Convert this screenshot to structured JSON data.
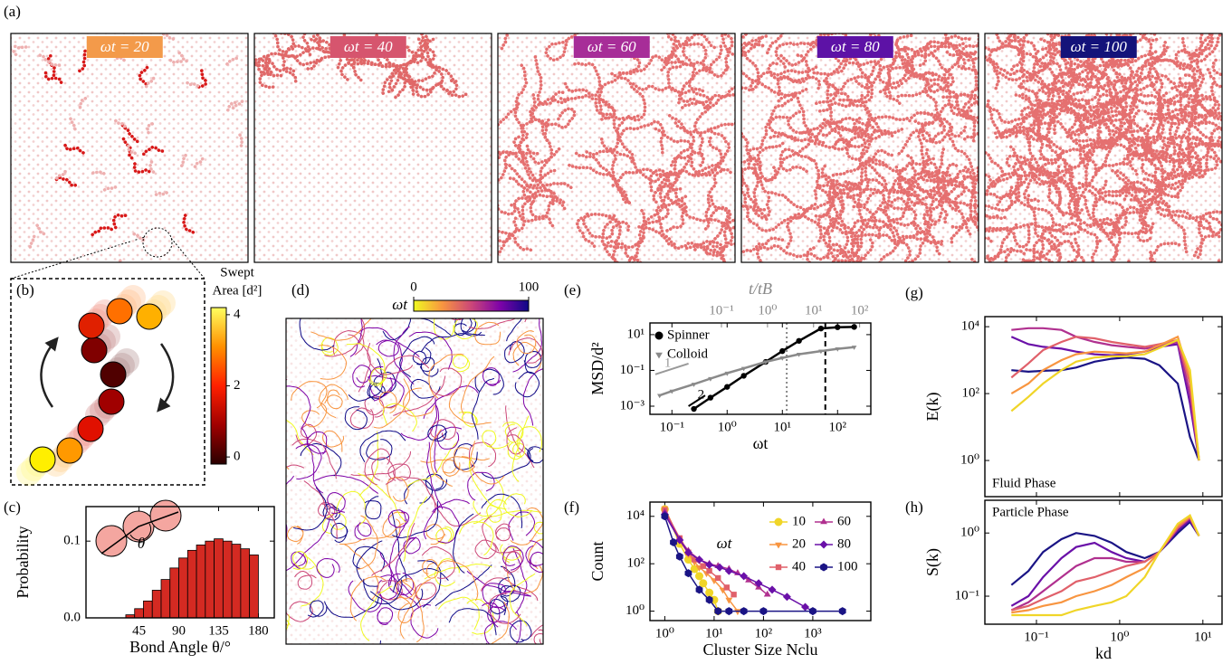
{
  "panels": {
    "a": {
      "label": "(a)",
      "snapshots": [
        {
          "label": "ωt = 20",
          "color": "#f39a4a"
        },
        {
          "label": "ωt = 40",
          "color": "#d6556e"
        },
        {
          "label": "ωt = 60",
          "color": "#a72d98"
        },
        {
          "label": "ωt = 80",
          "color": "#5d12a6"
        },
        {
          "label": "ωt = 100",
          "color": "#14137a"
        }
      ]
    },
    "b": {
      "label": "(b)"
    },
    "d": {
      "label": "(d)"
    }
  },
  "chart_data": [
    {
      "type": "colorbar",
      "title": [
        "Swept",
        "Area [d²]"
      ],
      "colors": [
        "#2a0000",
        "#a00000",
        "#ff2000",
        "#ff9000",
        "#ffff60"
      ],
      "ylim": [
        -0.2,
        4.2
      ],
      "yticks": [
        0,
        2,
        4
      ]
    },
    {
      "type": "colorbar",
      "title": "ωt",
      "colors": [
        "#f0f921",
        "#f89540",
        "#cc4778",
        "#7e03a8",
        "#0d0887"
      ],
      "xlim": [
        0,
        100
      ],
      "xticks": [
        0,
        100
      ]
    },
    {
      "type": "histogram",
      "label": "(c)",
      "xlabel": "Bond Angle θ/°",
      "ylabel": "Probability",
      "inset_label": "θ",
      "bins": [
        30,
        40,
        50,
        60,
        70,
        80,
        90,
        100,
        110,
        120,
        130,
        140,
        150,
        160,
        170,
        180
      ],
      "values": [
        0.004,
        0.012,
        0.022,
        0.036,
        0.05,
        0.065,
        0.078,
        0.088,
        0.095,
        0.1,
        0.103,
        0.1,
        0.096,
        0.09,
        0.082
      ],
      "color": "#d42a22",
      "xlim": [
        -15,
        198
      ],
      "xticks": [
        45,
        90,
        135,
        180
      ],
      "ylim": [
        0,
        0.145
      ],
      "yticks": [
        {
          "value": 0,
          "label": "0.0"
        },
        0.1
      ]
    },
    {
      "type": "line",
      "label": "(e)",
      "xlabel": "ωt",
      "ylabel": "MSD/d²",
      "x2label": "t/tB",
      "x2color": "#888888",
      "xscale": "log",
      "yscale": "log",
      "xlim": [
        0.04,
        400
      ],
      "ylim": [
        0.00035,
        45
      ],
      "x2lim": [
        0.0028,
        175
      ],
      "xticks": [
        {
          "value": 0.1,
          "label": "10⁻¹"
        },
        {
          "value": 1,
          "label": "10⁰"
        },
        {
          "value": 10,
          "label": "10¹"
        },
        {
          "value": 100,
          "label": "10²"
        }
      ],
      "yticks": [
        {
          "value": 0.001,
          "label": "10⁻³"
        },
        {
          "value": 0.1,
          "label": "10⁻¹"
        },
        {
          "value": 10,
          "label": "10¹"
        }
      ],
      "x2ticks": [
        {
          "value": 0.1,
          "label": "10⁻¹"
        },
        {
          "value": 1,
          "label": "10⁰"
        },
        {
          "value": 10,
          "label": "10¹"
        },
        {
          "value": 100,
          "label": "10²"
        }
      ],
      "x": [
        0.06,
        0.1,
        0.25,
        0.5,
        1,
        2,
        5,
        10,
        20,
        50,
        100,
        200
      ],
      "series": [
        {
          "name": "Spinner",
          "color": "#000000",
          "marker": "circle",
          "values": [
            null,
            null,
            0.0007,
            0.003,
            0.012,
            0.05,
            0.3,
            1.2,
            4.5,
            22,
            26,
            27
          ]
        },
        {
          "name": "Colloid",
          "color": "#8a8a8a",
          "marker": "triangle-down",
          "values": [
            0.004,
            0.007,
            0.017,
            0.035,
            0.07,
            0.13,
            0.3,
            0.5,
            0.8,
            1.2,
            1.6,
            2.0
          ]
        }
      ],
      "vlines": [
        {
          "x": 12,
          "style": "dotted",
          "color": "#888888"
        },
        {
          "x": 60,
          "style": "dashed",
          "color": "#000000"
        }
      ],
      "slope_guides": [
        {
          "label": "1",
          "x": [
            0.05,
            0.2
          ],
          "y": [
            0.06,
            0.24
          ],
          "color": "#999999"
        },
        {
          "label": "2",
          "x": [
            0.2,
            0.4
          ],
          "y": [
            0.001,
            0.004
          ],
          "color": "#000000"
        }
      ],
      "legend": "upper left"
    },
    {
      "type": "line",
      "label": "(f)",
      "xlabel": "Cluster Size Nclu",
      "ylabel": "Count",
      "xscale": "log",
      "yscale": "log",
      "xlim": [
        0.5,
        15000
      ],
      "ylim": [
        0.4,
        40000
      ],
      "xticks": [
        {
          "value": 1,
          "label": "10⁰"
        },
        {
          "value": 10,
          "label": "10¹"
        },
        {
          "value": 100,
          "label": "10²"
        },
        {
          "value": 1000,
          "label": "10³"
        }
      ],
      "yticks": [
        {
          "value": 1,
          "label": "10⁰"
        },
        {
          "value": 100,
          "label": "10²"
        },
        {
          "value": 10000,
          "label": "10⁴"
        }
      ],
      "legend_title": "ωt",
      "legend": "upper right",
      "series": [
        {
          "name": "10",
          "color": "#f0d528",
          "marker": "circle",
          "x": [
            1,
            2,
            3,
            4,
            5,
            6,
            8,
            10,
            12
          ],
          "values": [
            20000,
            700,
            150,
            60,
            30,
            15,
            6,
            3,
            1
          ]
        },
        {
          "name": "20",
          "color": "#f89540",
          "marker": "triangle-down",
          "x": [
            1,
            2,
            3,
            4,
            5,
            7,
            10,
            15,
            20,
            30
          ],
          "values": [
            22000,
            1000,
            250,
            120,
            70,
            40,
            20,
            8,
            3,
            1
          ]
        },
        {
          "name": "40",
          "color": "#e0606a",
          "marker": "square",
          "x": [
            1,
            2,
            3,
            4,
            6,
            8,
            12,
            18,
            25
          ],
          "values": [
            18000,
            1200,
            300,
            150,
            80,
            50,
            25,
            10,
            5
          ]
        },
        {
          "name": "60",
          "color": "#b0308f",
          "marker": "triangle-up",
          "x": [
            1,
            2,
            3,
            5,
            8,
            12,
            20,
            30,
            50,
            80,
            120
          ],
          "values": [
            15000,
            1100,
            350,
            150,
            100,
            80,
            60,
            40,
            20,
            10,
            5
          ]
        },
        {
          "name": "80",
          "color": "#6a10a8",
          "marker": "diamond",
          "x": [
            1,
            2,
            3,
            5,
            8,
            13,
            20,
            40,
            80,
            150,
            300,
            700,
            1000
          ],
          "values": [
            12000,
            1000,
            300,
            150,
            90,
            70,
            50,
            30,
            15,
            8,
            4,
            1.5,
            1
          ]
        },
        {
          "name": "100",
          "color": "#1a1485",
          "marker": "hexagon",
          "x": [
            1,
            1.5,
            2,
            3,
            5,
            8,
            12,
            20,
            40,
            100,
            1000,
            4000
          ],
          "values": [
            10000,
            800,
            200,
            40,
            8,
            3,
            1,
            1,
            1,
            1,
            1,
            1
          ]
        }
      ]
    },
    {
      "type": "line",
      "label": "(g)",
      "ylabel": "E(k)",
      "annotation": "Fluid Phase",
      "xscale": "log",
      "yscale": "log",
      "xlim": [
        0.024,
        17
      ],
      "ylim": [
        0.083,
        20000
      ],
      "xticks": [
        {
          "value": 0.1,
          "label": "10⁻¹"
        },
        {
          "value": 1,
          "label": "10⁰"
        },
        {
          "value": 10,
          "label": "10¹"
        }
      ],
      "yticks": [
        {
          "value": 1,
          "label": "10⁰"
        },
        {
          "value": 100,
          "label": "10²"
        },
        {
          "value": 10000,
          "label": "10⁴"
        }
      ],
      "x": [
        0.05,
        0.08,
        0.12,
        0.2,
        0.3,
        0.5,
        0.8,
        1.2,
        2,
        3,
        5,
        7,
        9
      ],
      "series": [
        {
          "color": "#1a1485",
          "values": [
            500,
            450,
            480,
            500,
            600,
            900,
            1100,
            1200,
            1100,
            700,
            200,
            5,
            1
          ]
        },
        {
          "color": "#6a10a8",
          "values": [
            5000,
            3000,
            2500,
            2200,
            1800,
            1500,
            1400,
            1500,
            1800,
            2500,
            3000,
            50,
            1
          ]
        },
        {
          "color": "#b0308f",
          "values": [
            8000,
            9000,
            9000,
            8000,
            5000,
            3500,
            2800,
            2500,
            2200,
            2600,
            3500,
            100,
            1
          ]
        },
        {
          "color": "#e0606a",
          "values": [
            300,
            800,
            2000,
            3500,
            5000,
            4500,
            3500,
            3000,
            2500,
            3000,
            4000,
            200,
            1
          ]
        },
        {
          "color": "#f89540",
          "values": [
            100,
            200,
            500,
            1000,
            1500,
            1800,
            1700,
            1600,
            1800,
            2800,
            5000,
            300,
            1
          ]
        },
        {
          "color": "#f0d528",
          "values": [
            30,
            80,
            200,
            500,
            900,
            1200,
            1300,
            1300,
            1500,
            2300,
            4000,
            500,
            1
          ]
        }
      ]
    },
    {
      "type": "line",
      "label": "(h)",
      "xlabel": "kd",
      "ylabel": "S(k)",
      "annotation": "Particle Phase",
      "xscale": "log",
      "yscale": "log",
      "xlim": [
        0.024,
        17
      ],
      "ylim": [
        0.036,
        3.3
      ],
      "xticks": [
        {
          "value": 0.1,
          "label": "10⁻¹"
        },
        {
          "value": 1,
          "label": "10⁰"
        },
        {
          "value": 10,
          "label": "10¹"
        }
      ],
      "yticks": [
        {
          "value": 0.1,
          "label": "10⁻¹"
        },
        {
          "value": 1,
          "label": "10⁰"
        }
      ],
      "x": [
        0.05,
        0.08,
        0.12,
        0.2,
        0.3,
        0.5,
        0.8,
        1.2,
        2,
        3,
        5,
        7,
        9
      ],
      "series": [
        {
          "color": "#1a1485",
          "values": [
            0.15,
            0.25,
            0.5,
            0.8,
            1.0,
            0.9,
            0.7,
            0.5,
            0.4,
            0.5,
            1.0,
            1.5,
            0.9
          ]
        },
        {
          "color": "#6a10a8",
          "values": [
            0.07,
            0.1,
            0.2,
            0.4,
            0.6,
            0.7,
            0.5,
            0.4,
            0.35,
            0.5,
            1.1,
            1.6,
            0.9
          ]
        },
        {
          "color": "#b0308f",
          "values": [
            0.06,
            0.08,
            0.12,
            0.2,
            0.3,
            0.4,
            0.4,
            0.35,
            0.35,
            0.5,
            1.2,
            1.7,
            0.9
          ]
        },
        {
          "color": "#e0606a",
          "values": [
            0.06,
            0.07,
            0.09,
            0.12,
            0.17,
            0.2,
            0.25,
            0.3,
            0.35,
            0.5,
            1.2,
            1.8,
            0.9
          ]
        },
        {
          "color": "#f89540",
          "values": [
            0.055,
            0.06,
            0.07,
            0.08,
            0.1,
            0.12,
            0.15,
            0.2,
            0.28,
            0.5,
            1.3,
            1.8,
            0.9
          ]
        },
        {
          "color": "#f0d528",
          "values": [
            0.05,
            0.05,
            0.05,
            0.05,
            0.06,
            0.07,
            0.08,
            0.1,
            0.2,
            0.5,
            1.4,
            1.9,
            0.9
          ]
        }
      ]
    }
  ]
}
